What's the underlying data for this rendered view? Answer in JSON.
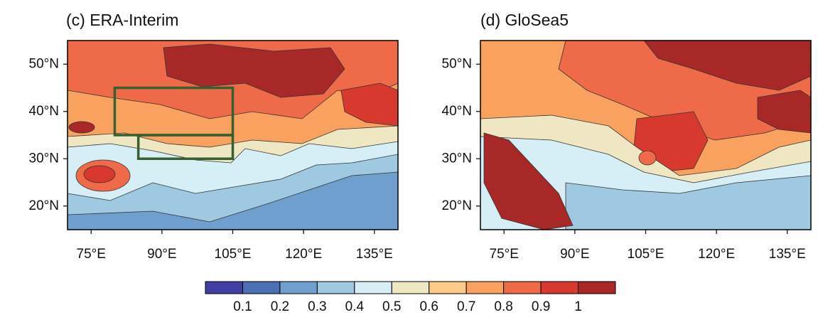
{
  "maps": [
    {
      "title": "(c) ERA-Interim",
      "xlim": [
        70,
        140
      ],
      "ylim": [
        15,
        55
      ],
      "xticks": [
        {
          "value": 75,
          "label": "75°E"
        },
        {
          "value": 90,
          "label": "90°E"
        },
        {
          "value": 105,
          "label": "105°E"
        },
        {
          "value": 120,
          "label": "120°E"
        },
        {
          "value": 135,
          "label": "135°E"
        }
      ],
      "yticks": [
        {
          "value": 20,
          "label": "20°N"
        },
        {
          "value": 30,
          "label": "30°N"
        },
        {
          "value": 40,
          "label": "40°N"
        },
        {
          "value": 50,
          "label": "50°N"
        }
      ],
      "boxes": [
        {
          "lon": [
            80,
            105
          ],
          "lat": [
            35,
            45
          ]
        },
        {
          "lon": [
            85,
            105
          ],
          "lat": [
            30,
            35
          ]
        }
      ],
      "box_color": "#35602f"
    },
    {
      "title": "(d) GloSea5",
      "xlim": [
        70,
        140
      ],
      "ylim": [
        15,
        55
      ],
      "xticks": [
        {
          "value": 75,
          "label": "75°E"
        },
        {
          "value": 90,
          "label": "90°E"
        },
        {
          "value": 105,
          "label": "105°E"
        },
        {
          "value": 120,
          "label": "120°E"
        },
        {
          "value": 135,
          "label": "135°E"
        }
      ],
      "yticks": [
        {
          "value": 20,
          "label": "20°N"
        },
        {
          "value": 30,
          "label": "30°N"
        },
        {
          "value": 40,
          "label": "40°N"
        },
        {
          "value": 50,
          "label": "50°N"
        }
      ]
    }
  ],
  "colorbar": {
    "clim": [
      0,
      1.1
    ],
    "ticks": [
      0.1,
      0.2,
      0.3,
      0.4,
      0.5,
      0.6,
      0.7,
      0.8,
      0.9,
      1
    ],
    "colors": [
      "#4040a2",
      "#4a6fb2",
      "#6f9fcf",
      "#9fc9e0",
      "#d6eef5",
      "#efe6c2",
      "#fdca8a",
      "#f9a15f",
      "#ee6a48",
      "#d8392e",
      "#a82828"
    ]
  }
}
